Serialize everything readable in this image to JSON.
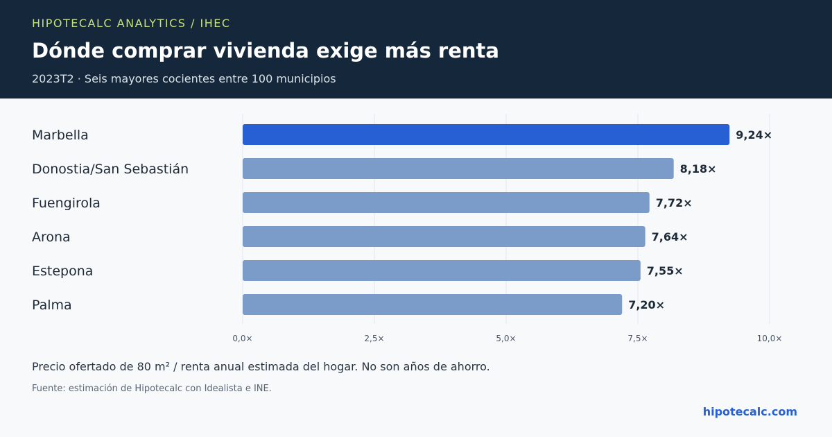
{
  "header": {
    "kicker": "HIPOTECALC ANALYTICS / IHEC",
    "title": "Dónde comprar vivienda exige más renta",
    "subtitle": "2023T2 · Seis mayores cocientes entre 100 municipios"
  },
  "footer": {
    "note": "Precio ofertado de 80 m² / renta anual estimada del hogar. No son años de ahorro.",
    "source": "Fuente: estimación de Hipotecalc con Idealista e INE.",
    "site": "hipotecalc.com"
  },
  "colors": {
    "highlight": "#2660d4",
    "bar": "#7b9bc9",
    "header_bg": "#15273a",
    "kicker": "#c6e07a"
  },
  "chart_data": {
    "type": "bar",
    "orientation": "horizontal",
    "categories": [
      "Marbella",
      "Donostia/San Sebastián",
      "Fuengirola",
      "Arona",
      "Estepona",
      "Palma"
    ],
    "values": [
      9.24,
      8.18,
      7.72,
      7.64,
      7.55,
      7.2
    ],
    "value_labels": [
      "9,24×",
      "8,18×",
      "7,72×",
      "7,64×",
      "7,55×",
      "7,20×"
    ],
    "highlight_index": 0,
    "xlim": [
      0,
      10
    ],
    "x_ticks": [
      0,
      2.5,
      5,
      7.5,
      10
    ],
    "x_tick_labels": [
      "0,0×",
      "2,5×",
      "5,0×",
      "7,5×",
      "10,0×"
    ],
    "grid": true
  }
}
